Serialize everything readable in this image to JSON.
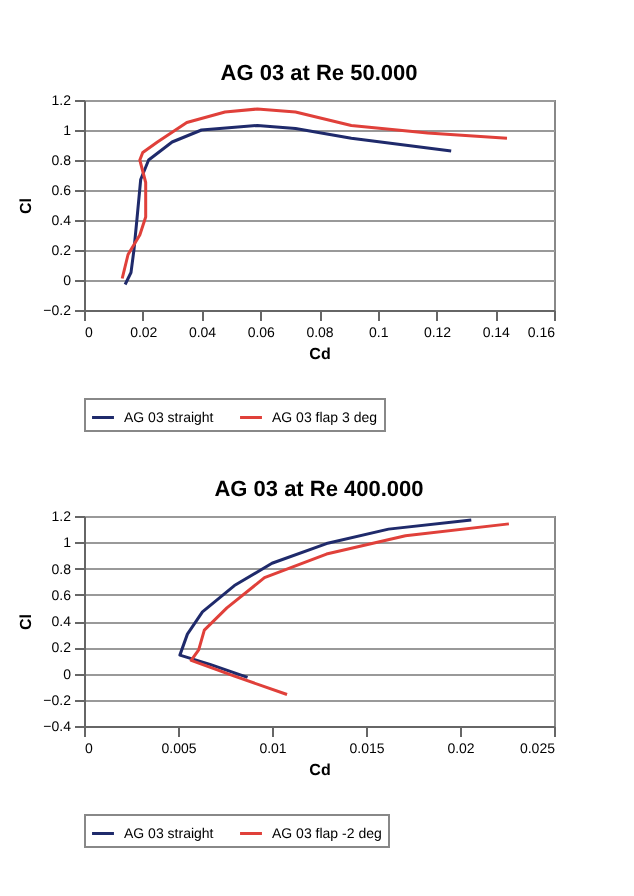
{
  "chart_data": [
    {
      "type": "line",
      "title": "AG 03 at Re 50.000",
      "xlabel": "Cd",
      "ylabel": "Cl",
      "xlim": [
        0,
        0.16
      ],
      "xticks": [
        0,
        0.02,
        0.04,
        0.06,
        0.08,
        0.1,
        0.12,
        0.14,
        0.16
      ],
      "ylim": [
        -0.2,
        1.2
      ],
      "yticks": [
        -0.2,
        0,
        0.2,
        0.4,
        0.6,
        0.8,
        1,
        1.2
      ],
      "grid": "y",
      "legend": "bottom",
      "marker": "none",
      "line_style": "solid",
      "series": [
        {
          "name": "AG 03 straight",
          "color": "#1f2a6b",
          "x": [
            0.014,
            0.016,
            0.017,
            0.018,
            0.0193,
            0.022,
            0.03,
            0.04,
            0.059,
            0.072,
            0.091,
            0.125
          ],
          "values": [
            -0.03,
            0.05,
            0.2,
            0.4,
            0.67,
            0.8,
            0.92,
            1.0,
            1.03,
            1.01,
            0.945,
            0.86
          ]
        },
        {
          "name": "AG 03 flap 3 deg",
          "color": "#e0403a",
          "x": [
            0.013,
            0.015,
            0.019,
            0.021,
            0.021,
            0.021,
            0.019,
            0.02,
            0.025,
            0.035,
            0.048,
            0.059,
            0.072,
            0.091,
            0.117,
            0.144
          ],
          "values": [
            0.01,
            0.17,
            0.3,
            0.42,
            0.52,
            0.65,
            0.8,
            0.85,
            0.92,
            1.05,
            1.12,
            1.14,
            1.12,
            1.03,
            0.98,
            0.945
          ]
        }
      ]
    },
    {
      "type": "line",
      "title": "AG 03 at Re 400.000",
      "xlabel": "Cd",
      "ylabel": "Cl",
      "xlim": [
        0,
        0.025
      ],
      "xticks": [
        0,
        0.005,
        0.01,
        0.015,
        0.02,
        0.025
      ],
      "ylim": [
        -0.4,
        1.2
      ],
      "yticks": [
        -0.4,
        -0.2,
        0,
        0.2,
        0.4,
        0.6,
        0.8,
        1,
        1.2
      ],
      "grid": "y",
      "legend": "bottom",
      "marker": "none",
      "line_style": "solid",
      "series": [
        {
          "name": "AG 03 straight",
          "color": "#1f2a6b",
          "x": [
            0.0087,
            0.0067,
            0.0051,
            0.0055,
            0.0063,
            0.008,
            0.01,
            0.0129,
            0.0162,
            0.0206
          ],
          "values": [
            -0.03,
            0.07,
            0.14,
            0.3,
            0.47,
            0.67,
            0.84,
            0.99,
            1.1,
            1.17
          ]
        },
        {
          "name": "AG 03 flap -2 deg",
          "color": "#e0403a",
          "x": [
            0.0108,
            0.008,
            0.0057,
            0.0061,
            0.0064,
            0.0076,
            0.0096,
            0.0129,
            0.0171,
            0.0226
          ],
          "values": [
            -0.16,
            -0.02,
            0.1,
            0.18,
            0.33,
            0.5,
            0.73,
            0.91,
            1.05,
            1.14
          ]
        }
      ]
    }
  ]
}
